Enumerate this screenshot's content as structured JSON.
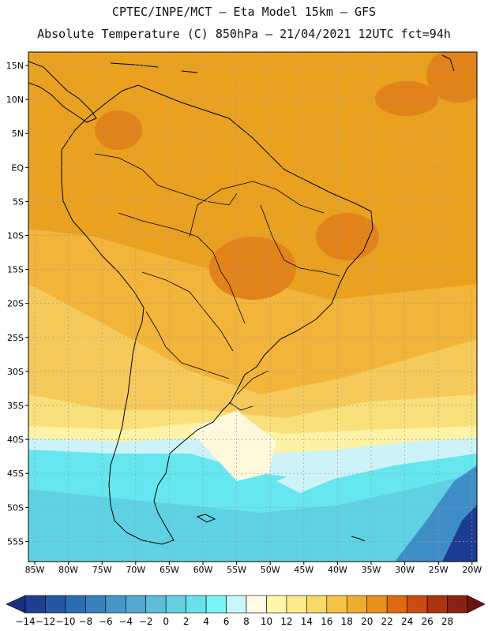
{
  "title_line1": "CPTEC/INPE/MCT –   Eta Model 15km – GFS",
  "title_line2": "Absolute Temperature (C) 850hPa – 21/04/2021 12UTC fct=94h",
  "lat_labels": [
    "15N",
    "10N",
    "5N",
    "EQ",
    "5S",
    "10S",
    "15S",
    "20S",
    "25S",
    "30S",
    "35S",
    "40S",
    "45S",
    "50S",
    "55S"
  ],
  "lon_labels": [
    "85W",
    "80W",
    "75W",
    "70W",
    "65W",
    "60W",
    "55W",
    "50W",
    "45W",
    "40W",
    "35W",
    "30W",
    "25W",
    "20W"
  ],
  "colorbar": {
    "labels": [
      "-14",
      "-12",
      "-10",
      "-8",
      "-6",
      "-4",
      "-2",
      "0",
      "2",
      "4",
      "6",
      "8",
      "10",
      "12",
      "14",
      "16",
      "18",
      "20",
      "22",
      "24",
      "26",
      "28"
    ],
    "colors": [
      "#1f3f92",
      "#2356a3",
      "#2d6cb2",
      "#3a82bf",
      "#4796c8",
      "#52a9cf",
      "#5dbcd8",
      "#63cfe0",
      "#68e2ea",
      "#7af3f5",
      "#c8f6fb",
      "#fffbe6",
      "#fff6a9",
      "#fbe98a",
      "#f8d86a",
      "#f3c34a",
      "#eead2d",
      "#e88f1e",
      "#de6a12",
      "#ca4c10",
      "#ac3210",
      "#8a2212"
    ],
    "under_color": "#18317a",
    "over_color": "#6e1410"
  },
  "colors": {
    "warm_deep": "#e9a11f",
    "warm_mid": "#f3b43a",
    "warm_hot": "#e2831a",
    "light_orange": "#f6ca5a",
    "yellow": "#f9e07a",
    "pale_yellow": "#fdf2a6",
    "cream": "#fff8dc",
    "pale_cyan": "#cdf3f8",
    "cyan": "#66e6ef",
    "mid_cyan": "#5ed2e2",
    "blue": "#3f8dc6",
    "dark_blue": "#1c3c93"
  }
}
